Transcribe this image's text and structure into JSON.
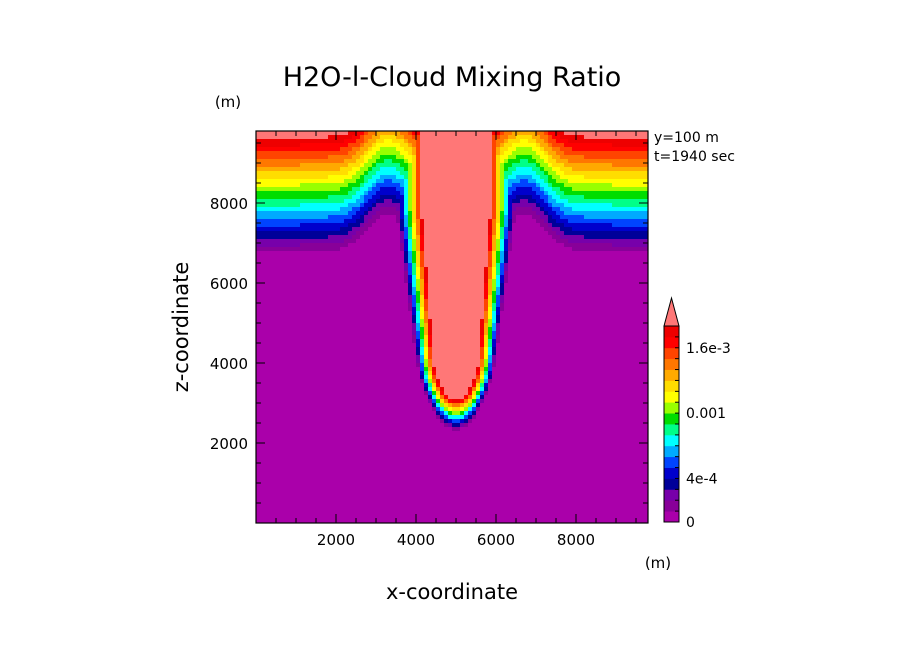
{
  "chart_data": {
    "type": "heatmap",
    "title": "H2O-l-Cloud Mixing Ratio",
    "xlabel": "x-coordinate",
    "ylabel": "z-coordinate",
    "x_unit": "(m)",
    "y_unit": "(m)",
    "annotations": [
      "y=100 m",
      "t=1940 sec"
    ],
    "xlim": [
      0,
      9800
    ],
    "ylim": [
      0,
      9800
    ],
    "xticks": [
      2000,
      4000,
      6000,
      8000
    ],
    "yticks": [
      2000,
      4000,
      6000,
      8000
    ],
    "colorbar": {
      "levels": [
        0,
        0.0001,
        0.0002,
        0.0003,
        0.0004,
        0.0005,
        0.0006,
        0.0007,
        0.0008,
        0.0009,
        0.001,
        0.0011,
        0.0012,
        0.0013,
        0.0014,
        0.0015,
        0.0016,
        0.0017,
        0.0018
      ],
      "tick_labels": [
        {
          "label": "0",
          "value": 0
        },
        {
          "label": "4e-4",
          "value": 0.0004
        },
        {
          "label": "0.001",
          "value": 0.001
        },
        {
          "label": "1.6e-3",
          "value": 0.0016
        }
      ],
      "colors": [
        "#aa00aa",
        "#880099",
        "#7700aa",
        "#000099",
        "#0000cc",
        "#0044ff",
        "#00aaff",
        "#00ffff",
        "#00ff88",
        "#00dd00",
        "#99ff00",
        "#ffff00",
        "#ffdd00",
        "#ffaa00",
        "#ff7700",
        "#ff4400",
        "#ff0000",
        "#ee0000",
        "#ff7777"
      ],
      "extend": "max"
    },
    "description_values": {
      "top_layer_base_z": [
        6800,
        8800
      ],
      "plume_center_x": 5000,
      "plume_half_width_top": 1100,
      "plume_bottom_z": 2800,
      "max_value_region": "above 0.0018"
    }
  }
}
